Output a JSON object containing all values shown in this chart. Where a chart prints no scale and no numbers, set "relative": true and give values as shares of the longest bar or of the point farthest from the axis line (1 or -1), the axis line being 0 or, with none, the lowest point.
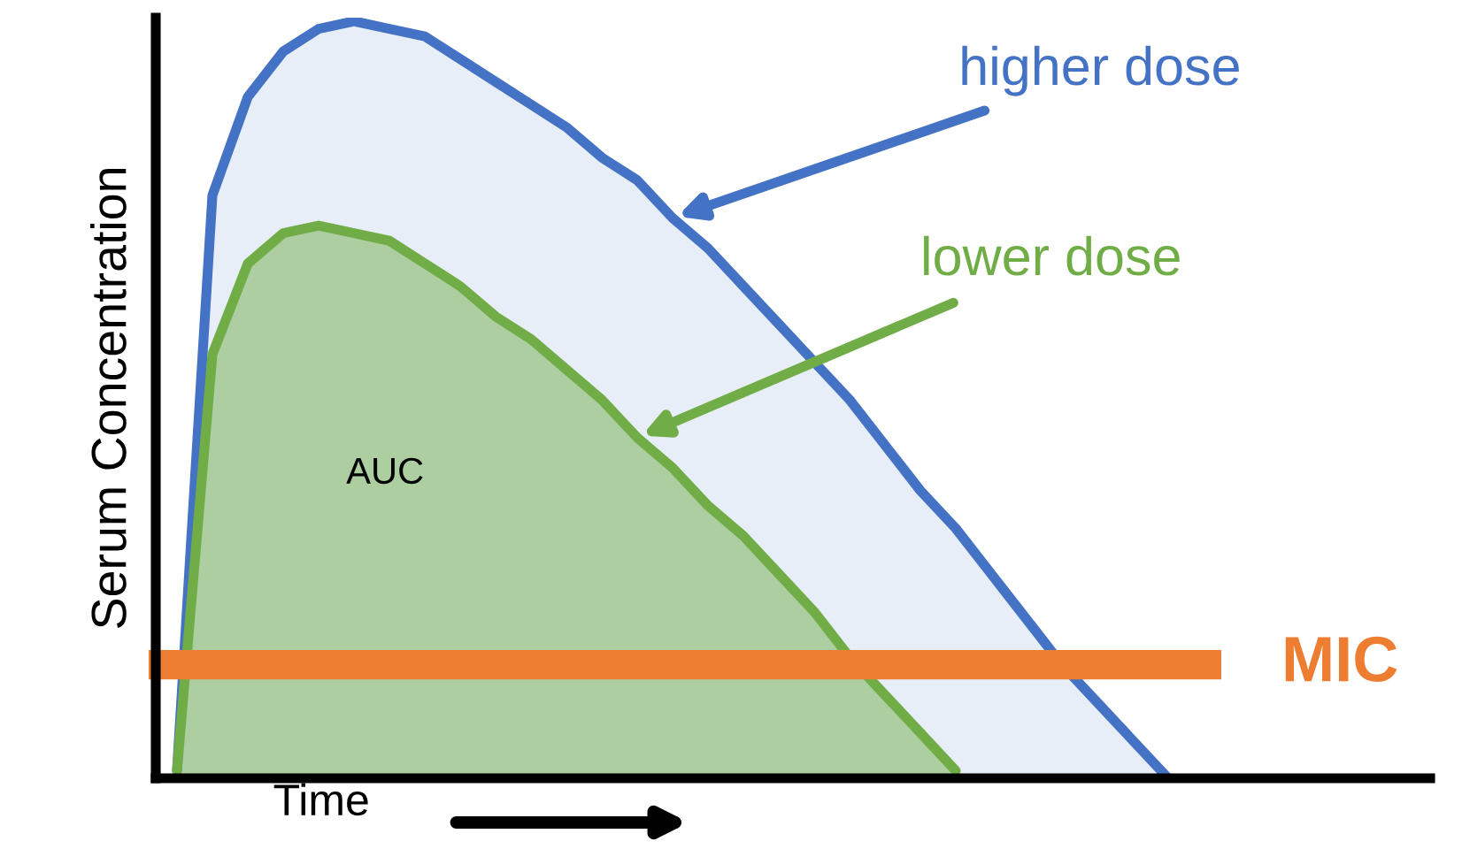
{
  "chart_data": {
    "type": "area",
    "relative": true,
    "xlabel": "Time",
    "ylabel": "Serum Concentration",
    "categories": [
      null,
      null,
      null,
      null,
      null,
      null,
      null,
      null,
      null,
      null,
      null,
      null,
      null,
      null,
      null,
      null,
      null,
      null,
      null,
      null,
      null,
      null,
      null,
      null,
      null,
      null,
      null,
      null,
      null
    ],
    "series": [
      {
        "name": "higher dose",
        "color": "#4472c4",
        "values": [
          0.01,
          0.77,
          0.9,
          0.96,
          0.99,
          1.0,
          0.99,
          0.98,
          0.95,
          0.92,
          0.89,
          0.86,
          0.82,
          0.79,
          0.74,
          0.7,
          0.65,
          0.6,
          0.55,
          0.5,
          0.44,
          0.38,
          0.33,
          0.27,
          0.21,
          0.15,
          0.1,
          0.05,
          0
        ]
      },
      {
        "name": "lower dose",
        "color": "#70ad47",
        "values": [
          0.01,
          0.56,
          0.68,
          0.72,
          0.73,
          0.72,
          0.71,
          0.68,
          0.65,
          0.61,
          0.58,
          0.54,
          0.5,
          0.45,
          0.41,
          0.36,
          0.32,
          0.27,
          0.22,
          0.16,
          0.11,
          0.06,
          0.01,
          null,
          null,
          null,
          null,
          null,
          null
        ]
      }
    ],
    "annotations": [
      "AUC"
    ],
    "ref_lines": [
      {
        "axis": "y",
        "value": 0.15,
        "label": "MIC",
        "color": "#ed7d31"
      }
    ]
  }
}
